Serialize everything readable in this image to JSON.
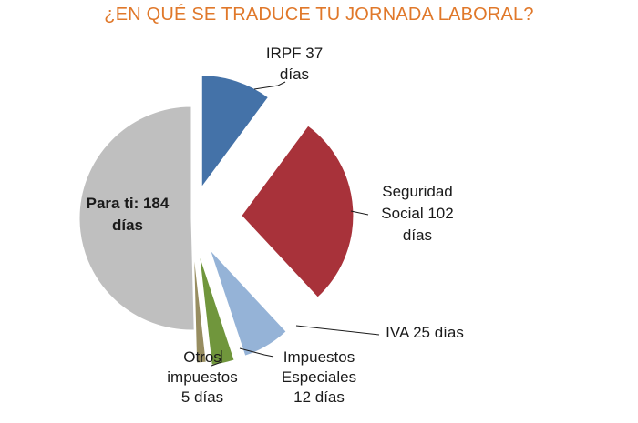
{
  "chart_data": {
    "type": "pie",
    "title": "¿EN QUÉ SE TRADUCE TU JORNADA LABORAL?",
    "slices": [
      {
        "name": "IRPF",
        "value": 37,
        "label_lines": [
          "IRPF 37",
          "días"
        ],
        "color": "#4472a8"
      },
      {
        "name": "Seguridad Social",
        "value": 102,
        "label_lines": [
          "Seguridad",
          "Social 102",
          "días"
        ],
        "color": "#a8323a"
      },
      {
        "name": "IVA",
        "value": 25,
        "label_lines": [
          "IVA 25 días"
        ],
        "color": "#95b3d7"
      },
      {
        "name": "Impuestos Especiales",
        "value": 12,
        "label_lines": [
          "Impuestos",
          "Especiales",
          "12 días"
        ],
        "color": "#70963c"
      },
      {
        "name": "Otros impuestos",
        "value": 5,
        "label_lines": [
          "Otros",
          "impuestos",
          "5 días"
        ],
        "color": "#978d60"
      },
      {
        "name": "Para ti",
        "value": 184,
        "label_lines": [
          "Para ti: 184",
          "días"
        ],
        "color": "#bfbfbf"
      }
    ]
  }
}
